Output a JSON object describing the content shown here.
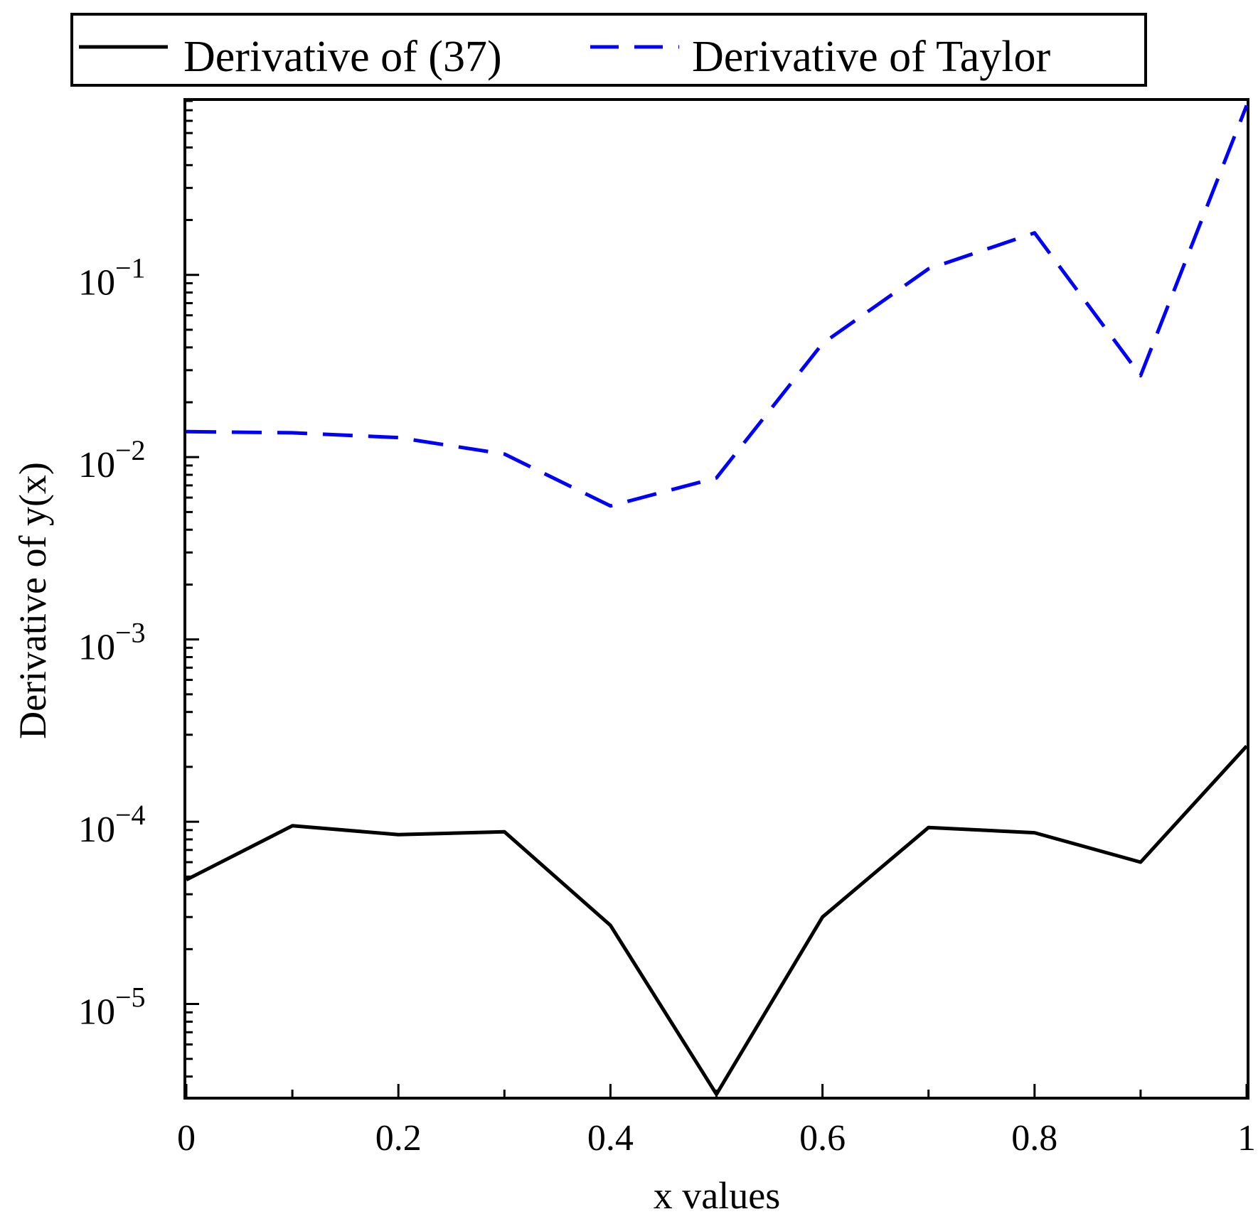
{
  "chart_data": {
    "type": "line",
    "xlabel": "x values",
    "ylabel": "Derivative of y(x)",
    "y_scale": "log",
    "xlim": [
      0,
      1
    ],
    "ylim": [
      3.1e-06,
      0.9
    ],
    "grid": false,
    "legend_position": "top",
    "x_ticks": [
      {
        "value": 0,
        "label": "0"
      },
      {
        "value": 0.2,
        "label": "0.2"
      },
      {
        "value": 0.4,
        "label": "0.4"
      },
      {
        "value": 0.6,
        "label": "0.6"
      },
      {
        "value": 0.8,
        "label": "0.8"
      },
      {
        "value": 1,
        "label": "1"
      }
    ],
    "y_ticks": [
      {
        "value": 1e-05,
        "base": "10",
        "exp": "−5"
      },
      {
        "value": 0.0001,
        "base": "10",
        "exp": "−4"
      },
      {
        "value": 0.001,
        "base": "10",
        "exp": "−3"
      },
      {
        "value": 0.01,
        "base": "10",
        "exp": "−2"
      },
      {
        "value": 0.1,
        "base": "10",
        "exp": "−1"
      }
    ],
    "x": [
      0,
      0.1,
      0.2,
      0.3,
      0.4,
      0.5,
      0.6,
      0.7,
      0.8,
      0.9,
      1.0
    ],
    "series": [
      {
        "name": "Derivative of (37)",
        "color": "#000000",
        "style": "solid",
        "values": [
          4.8e-05,
          9.5e-05,
          8.5e-05,
          8.8e-05,
          2.7e-05,
          3.2e-06,
          3e-05,
          9.3e-05,
          8.7e-05,
          6e-05,
          0.00026
        ]
      },
      {
        "name": "Derivative of Taylor",
        "color": "#0000ff",
        "style": "dashed",
        "values": [
          0.0138,
          0.0136,
          0.0128,
          0.0104,
          0.0054,
          0.0077,
          0.042,
          0.108,
          0.17,
          0.028,
          0.85
        ]
      }
    ]
  }
}
